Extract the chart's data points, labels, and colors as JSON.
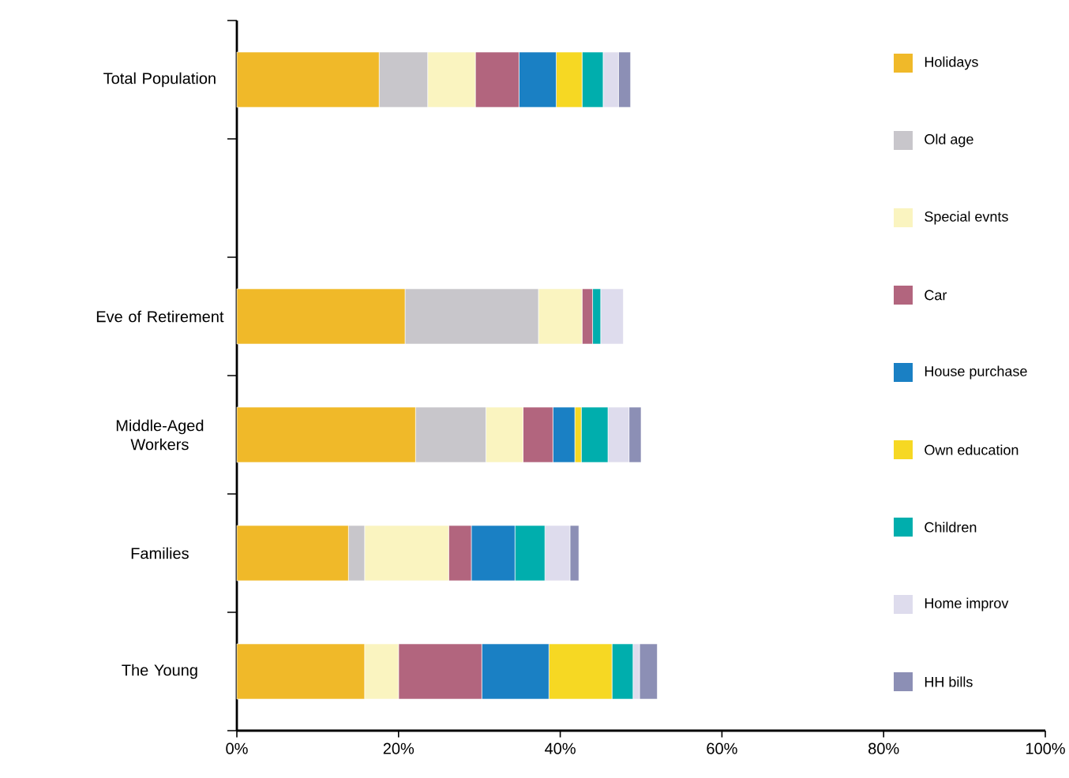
{
  "chart_data": {
    "type": "bar",
    "orientation": "horizontal",
    "stacked": true,
    "legend": "right",
    "categories": [
      "Total Population",
      null,
      "Eve of Retirement",
      "Middle-Aged Workers",
      "Families",
      "The Young"
    ],
    "xlim": [
      0,
      100
    ],
    "xticks": [
      {
        "value": 0,
        "label": "0%"
      },
      {
        "value": 20,
        "label": "20%"
      },
      {
        "value": 40,
        "label": "40%"
      },
      {
        "value": 60,
        "label": "60%"
      },
      {
        "value": 80,
        "label": "80%"
      },
      {
        "value": 100,
        "label": "100%"
      }
    ],
    "series": [
      {
        "name": "Holidays",
        "color": "#f0b929",
        "values": [
          17.6,
          null,
          20.8,
          22.1,
          13.8,
          15.8
        ]
      },
      {
        "name": "Old age",
        "color": "#c8c6cb",
        "values": [
          6.0,
          null,
          16.5,
          8.7,
          2.0,
          0
        ]
      },
      {
        "name": "Special evnts",
        "color": "#faf4c0",
        "values": [
          5.9,
          null,
          5.4,
          4.6,
          10.4,
          4.2
        ]
      },
      {
        "name": "Car",
        "color": "#b2657e",
        "values": [
          5.4,
          null,
          1.3,
          3.7,
          2.8,
          10.3
        ]
      },
      {
        "name": "House purchase",
        "color": "#1a80c4",
        "values": [
          4.6,
          null,
          0,
          2.7,
          5.4,
          8.3
        ]
      },
      {
        "name": "Own education",
        "color": "#f6d823",
        "values": [
          3.2,
          null,
          0,
          0.8,
          0,
          7.8
        ]
      },
      {
        "name": "Children",
        "color": "#00aead",
        "values": [
          2.6,
          null,
          1.0,
          3.3,
          3.7,
          2.6
        ]
      },
      {
        "name": "Home improv",
        "color": "#dedced",
        "values": [
          1.9,
          null,
          2.8,
          2.6,
          3.1,
          0.8
        ]
      },
      {
        "name": "HH bills",
        "color": "#8c8fb5",
        "values": [
          1.5,
          null,
          0,
          1.5,
          1.1,
          2.2
        ]
      }
    ]
  }
}
